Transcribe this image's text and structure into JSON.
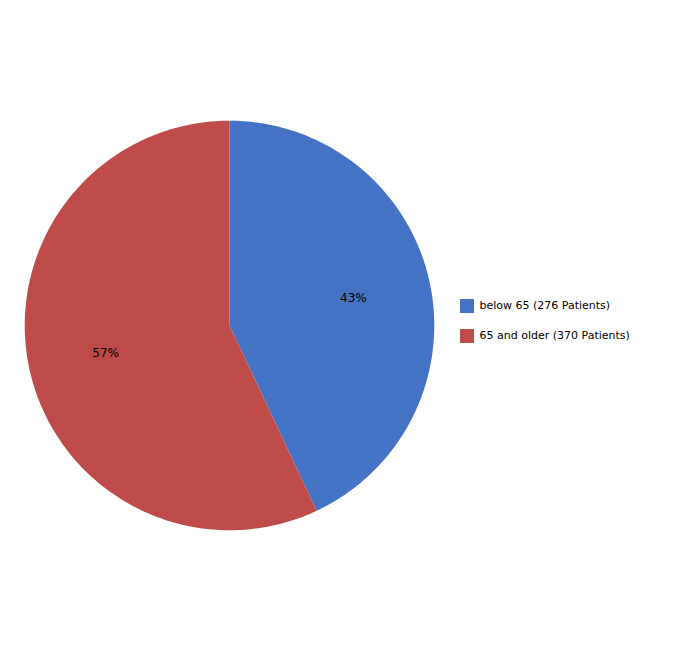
{
  "chart_data": {
    "type": "pie",
    "categories": [
      "below 65 (276 Patients)",
      "65 and older (370 Patients)"
    ],
    "values": [
      43,
      57
    ],
    "value_labels": [
      "43%",
      "57%"
    ],
    "colors": [
      "#4472C4",
      "#BE4B48"
    ],
    "data_labels": true,
    "legend": "right"
  }
}
